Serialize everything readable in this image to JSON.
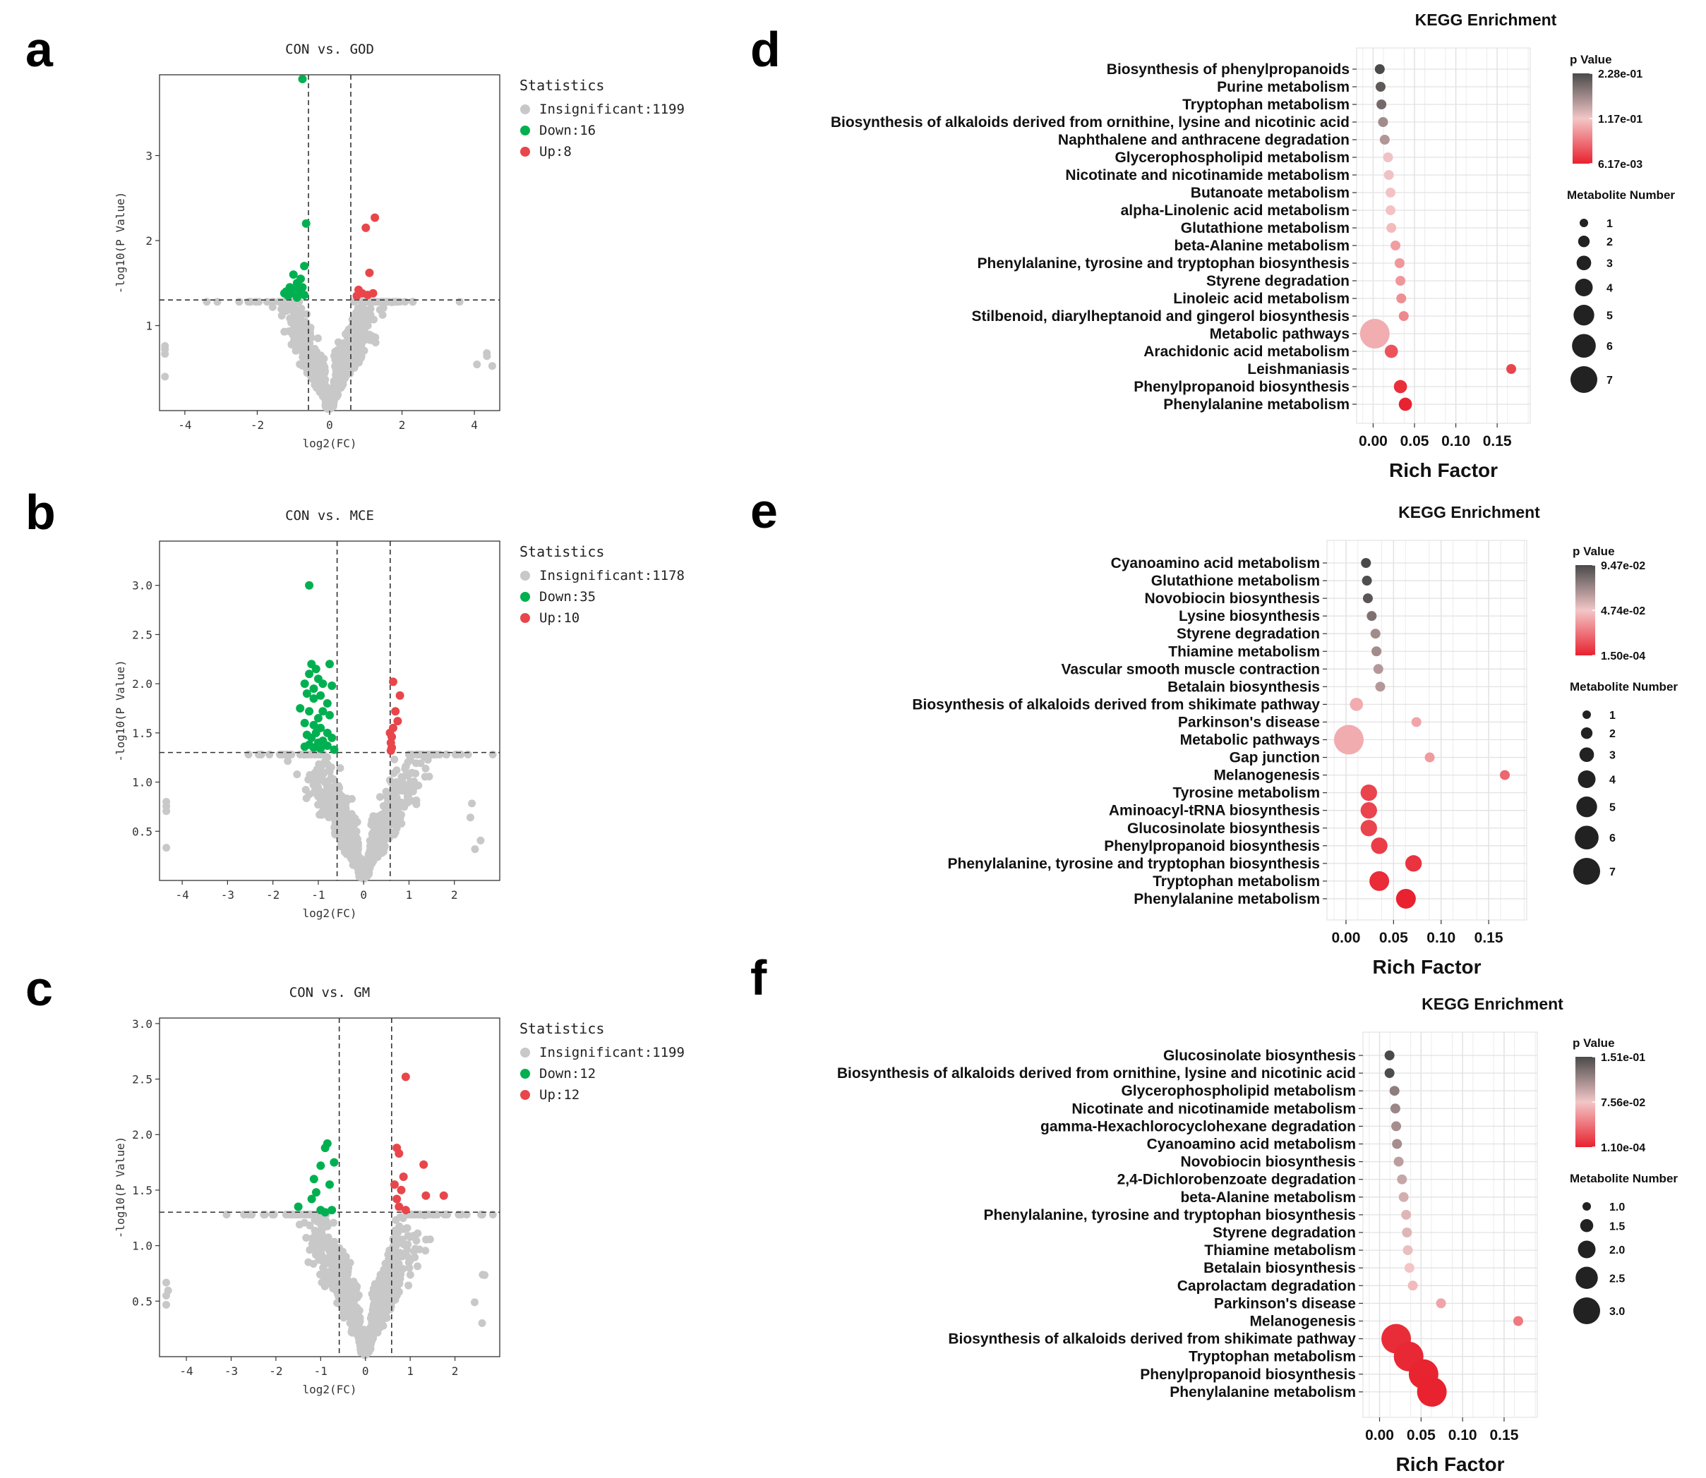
{
  "panel_letters": [
    "a",
    "b",
    "c",
    "d",
    "e",
    "f"
  ],
  "colors": {
    "insignificant": "#c8c8c8",
    "down": "#00b050",
    "up": "#e8464b",
    "grid": "#ececec",
    "pvalue_low": "#e8222e",
    "pvalue_mid": "#f3c6c7",
    "pvalue_high": "#4a4a4a"
  },
  "chart_data": [
    {
      "id": "a",
      "type": "scatter",
      "title": "CON vs. GOD",
      "xlabel": "log2(FC)",
      "ylabel": "-log10(P Value)",
      "xlim": [
        -4.7,
        4.7
      ],
      "ylim": [
        0,
        3.95
      ],
      "xticks": [
        -4,
        -2,
        0,
        2,
        4
      ],
      "yticks": [
        1,
        2,
        3
      ],
      "thresholds": {
        "x": [
          -0.585,
          0.585
        ],
        "y": 1.301
      },
      "legend_title": "Statistics",
      "legend": [
        "Insignificant:1199",
        "Down:16",
        "Up:8"
      ],
      "down_points": [
        [
          -0.75,
          3.9
        ],
        [
          -0.65,
          2.2
        ],
        [
          -0.7,
          1.7
        ],
        [
          -1.0,
          1.6
        ],
        [
          -0.8,
          1.55
        ],
        [
          -0.9,
          1.5
        ],
        [
          -1.1,
          1.45
        ],
        [
          -0.75,
          1.45
        ],
        [
          -0.95,
          1.42
        ],
        [
          -1.2,
          1.4
        ],
        [
          -0.85,
          1.4
        ],
        [
          -1.05,
          1.38
        ],
        [
          -1.25,
          1.38
        ],
        [
          -0.7,
          1.36
        ],
        [
          -1.15,
          1.35
        ],
        [
          -0.9,
          1.33
        ]
      ],
      "up_points": [
        [
          1.25,
          2.27
        ],
        [
          1.0,
          2.15
        ],
        [
          1.1,
          1.62
        ],
        [
          0.8,
          1.42
        ],
        [
          0.9,
          1.38
        ],
        [
          1.2,
          1.38
        ],
        [
          1.05,
          1.36
        ],
        [
          0.75,
          1.35
        ]
      ]
    },
    {
      "id": "b",
      "type": "scatter",
      "title": "CON vs. MCE",
      "xlabel": "log2(FC)",
      "ylabel": "-log10(P Value)",
      "xlim": [
        -4.5,
        3.0
      ],
      "ylim": [
        0,
        3.45
      ],
      "xticks": [
        -4,
        -3,
        -2,
        -1,
        0,
        1,
        2
      ],
      "yticks": [
        0.5,
        1.0,
        1.5,
        2.0,
        2.5,
        3.0
      ],
      "thresholds": {
        "x": [
          -0.585,
          0.585
        ],
        "y": 1.301
      },
      "legend_title": "Statistics",
      "legend": [
        "Insignificant:1178",
        "Down:35",
        "Up:10"
      ],
      "down_points": [
        [
          -1.2,
          3.0
        ],
        [
          -1.15,
          2.2
        ],
        [
          -1.05,
          2.15
        ],
        [
          -0.75,
          2.2
        ],
        [
          -1.2,
          2.1
        ],
        [
          -1.0,
          2.05
        ],
        [
          -1.3,
          2.0
        ],
        [
          -0.9,
          2.0
        ],
        [
          -0.7,
          1.98
        ],
        [
          -1.1,
          1.95
        ],
        [
          -1.25,
          1.9
        ],
        [
          -0.95,
          1.88
        ],
        [
          -1.1,
          1.85
        ],
        [
          -0.8,
          1.8
        ],
        [
          -1.4,
          1.75
        ],
        [
          -1.2,
          1.72
        ],
        [
          -0.9,
          1.72
        ],
        [
          -1.0,
          1.65
        ],
        [
          -0.75,
          1.68
        ],
        [
          -1.3,
          1.6
        ],
        [
          -1.1,
          1.58
        ],
        [
          -0.95,
          1.55
        ],
        [
          -1.05,
          1.5
        ],
        [
          -0.8,
          1.5
        ],
        [
          -1.25,
          1.48
        ],
        [
          -1.15,
          1.45
        ],
        [
          -0.7,
          1.45
        ],
        [
          -0.9,
          1.42
        ],
        [
          -1.0,
          1.4
        ],
        [
          -1.2,
          1.38
        ],
        [
          -0.8,
          1.37
        ],
        [
          -1.1,
          1.35
        ],
        [
          -0.95,
          1.34
        ],
        [
          -0.65,
          1.33
        ],
        [
          -1.3,
          1.36
        ]
      ],
      "up_points": [
        [
          0.65,
          2.02
        ],
        [
          0.8,
          1.88
        ],
        [
          0.7,
          1.72
        ],
        [
          0.75,
          1.62
        ],
        [
          0.65,
          1.55
        ],
        [
          0.58,
          1.5
        ],
        [
          0.62,
          1.46
        ],
        [
          0.6,
          1.4
        ],
        [
          0.62,
          1.35
        ],
        [
          0.6,
          1.32
        ]
      ]
    },
    {
      "id": "c",
      "type": "scatter",
      "title": "CON vs. GM",
      "xlabel": "log2(FC)",
      "ylabel": "-log10(P Value)",
      "xlim": [
        -4.6,
        3.0
      ],
      "ylim": [
        0,
        3.05
      ],
      "xticks": [
        -4,
        -3,
        -2,
        -1,
        0,
        1,
        2
      ],
      "yticks": [
        0.5,
        1.0,
        1.5,
        2.0,
        2.5,
        3.0
      ],
      "thresholds": {
        "x": [
          -0.585,
          0.585
        ],
        "y": 1.301
      },
      "legend_title": "Statistics",
      "legend": [
        "Insignificant:1199",
        "Down:12",
        "Up:12"
      ],
      "down_points": [
        [
          -0.85,
          1.92
        ],
        [
          -0.9,
          1.88
        ],
        [
          -0.7,
          1.75
        ],
        [
          -1.0,
          1.72
        ],
        [
          -1.15,
          1.6
        ],
        [
          -0.8,
          1.55
        ],
        [
          -1.1,
          1.48
        ],
        [
          -1.5,
          1.35
        ],
        [
          -1.0,
          1.32
        ],
        [
          -0.75,
          1.32
        ],
        [
          -0.9,
          1.3
        ],
        [
          -1.2,
          1.42
        ]
      ],
      "up_points": [
        [
          0.9,
          2.52
        ],
        [
          0.7,
          1.88
        ],
        [
          0.75,
          1.83
        ],
        [
          1.3,
          1.73
        ],
        [
          0.85,
          1.62
        ],
        [
          0.65,
          1.55
        ],
        [
          0.8,
          1.5
        ],
        [
          1.35,
          1.45
        ],
        [
          1.75,
          1.45
        ],
        [
          0.7,
          1.42
        ],
        [
          0.9,
          1.32
        ],
        [
          0.75,
          1.35
        ]
      ]
    },
    {
      "id": "d",
      "type": "scatter",
      "title": "KEGG Enrichment",
      "xlabel": "Rich Factor",
      "xlim": [
        -0.02,
        0.19
      ],
      "xticks": [
        "0.00",
        "0.05",
        "0.10",
        "0.15"
      ],
      "xtick_values": [
        0,
        0.05,
        0.1,
        0.15
      ],
      "colorbar_title": "p Value",
      "colorbar_labels": [
        "2.28e-01",
        "1.17e-01",
        "6.17e-03"
      ],
      "size_title": "Metabolite Number",
      "size_legend": [
        "1",
        "2",
        "3",
        "4",
        "5",
        "6",
        "7"
      ],
      "pathways": [
        {
          "name": "Biosynthesis of phenylpropanoids",
          "rich": 0.008,
          "p": 0.228,
          "n": 1
        },
        {
          "name": "Purine metabolism",
          "rich": 0.009,
          "p": 0.215,
          "n": 1
        },
        {
          "name": "Tryptophan metabolism",
          "rich": 0.01,
          "p": 0.2,
          "n": 1
        },
        {
          "name": "Biosynthesis of alkaloids derived from ornithine, lysine and nicotinic acid",
          "rich": 0.012,
          "p": 0.17,
          "n": 1
        },
        {
          "name": "Naphthalene and anthracene degradation",
          "rich": 0.014,
          "p": 0.16,
          "n": 1
        },
        {
          "name": "Glycerophospholipid metabolism",
          "rich": 0.018,
          "p": 0.12,
          "n": 1
        },
        {
          "name": "Nicotinate and nicotinamide metabolism",
          "rich": 0.019,
          "p": 0.12,
          "n": 1
        },
        {
          "name": "Butanoate metabolism",
          "rich": 0.021,
          "p": 0.115,
          "n": 1
        },
        {
          "name": "alpha-Linolenic acid metabolism",
          "rich": 0.021,
          "p": 0.115,
          "n": 1
        },
        {
          "name": "Glutathione metabolism",
          "rich": 0.022,
          "p": 0.11,
          "n": 1
        },
        {
          "name": "beta-Alanine metabolism",
          "rich": 0.027,
          "p": 0.09,
          "n": 1
        },
        {
          "name": "Phenylalanine, tyrosine and tryptophan biosynthesis",
          "rich": 0.032,
          "p": 0.085,
          "n": 1
        },
        {
          "name": "Styrene degradation",
          "rich": 0.033,
          "p": 0.085,
          "n": 1
        },
        {
          "name": "Linoleic acid metabolism",
          "rich": 0.034,
          "p": 0.08,
          "n": 1
        },
        {
          "name": "Stilbenoid, diarylheptanoid and gingerol biosynthesis",
          "rich": 0.037,
          "p": 0.075,
          "n": 1
        },
        {
          "name": "Metabolic pathways",
          "rich": 0.002,
          "p": 0.1,
          "n": 7
        },
        {
          "name": "Arachidonic acid metabolism",
          "rich": 0.022,
          "p": 0.04,
          "n": 2
        },
        {
          "name": "Leishmaniasis",
          "rich": 0.167,
          "p": 0.03,
          "n": 1
        },
        {
          "name": "Phenylpropanoid biosynthesis",
          "rich": 0.033,
          "p": 0.015,
          "n": 2
        },
        {
          "name": "Phenylalanine metabolism",
          "rich": 0.039,
          "p": 0.00617,
          "n": 2
        }
      ],
      "p_range": [
        0.00617,
        0.228
      ]
    },
    {
      "id": "e",
      "type": "scatter",
      "title": "KEGG Enrichment",
      "xlabel": "Rich Factor",
      "xlim": [
        -0.02,
        0.19
      ],
      "xticks": [
        "0.00",
        "0.05",
        "0.10",
        "0.15"
      ],
      "xtick_values": [
        0,
        0.05,
        0.1,
        0.15
      ],
      "colorbar_title": "p Value",
      "colorbar_labels": [
        "9.47e-02",
        "4.74e-02",
        "1.50e-04"
      ],
      "size_title": "Metabolite Number",
      "size_legend": [
        "1",
        "2",
        "3",
        "4",
        "5",
        "6",
        "7"
      ],
      "pathways": [
        {
          "name": "Cyanoamino acid metabolism",
          "rich": 0.021,
          "p": 0.0947,
          "n": 1
        },
        {
          "name": "Glutathione metabolism",
          "rich": 0.022,
          "p": 0.093,
          "n": 1
        },
        {
          "name": "Novobiocin biosynthesis",
          "rich": 0.023,
          "p": 0.09,
          "n": 1
        },
        {
          "name": "Lysine biosynthesis",
          "rich": 0.027,
          "p": 0.08,
          "n": 1
        },
        {
          "name": "Styrene degradation",
          "rich": 0.031,
          "p": 0.07,
          "n": 1
        },
        {
          "name": "Thiamine metabolism",
          "rich": 0.032,
          "p": 0.07,
          "n": 1
        },
        {
          "name": "Vascular smooth muscle contraction",
          "rich": 0.034,
          "p": 0.065,
          "n": 1
        },
        {
          "name": "Betalain biosynthesis",
          "rich": 0.036,
          "p": 0.065,
          "n": 1
        },
        {
          "name": "Biosynthesis of alkaloids derived from shikimate pathway",
          "rich": 0.011,
          "p": 0.04,
          "n": 2
        },
        {
          "name": "Parkinson's disease",
          "rich": 0.074,
          "p": 0.038,
          "n": 1
        },
        {
          "name": "Metabolic pathways",
          "rich": 0.003,
          "p": 0.04,
          "n": 7
        },
        {
          "name": "Gap junction",
          "rich": 0.088,
          "p": 0.035,
          "n": 1
        },
        {
          "name": "Melanogenesis",
          "rich": 0.167,
          "p": 0.02,
          "n": 1
        },
        {
          "name": "Tyrosine metabolism",
          "rich": 0.024,
          "p": 0.01,
          "n": 3
        },
        {
          "name": "Aminoacyl-tRNA biosynthesis",
          "rich": 0.024,
          "p": 0.01,
          "n": 3
        },
        {
          "name": "Glucosinolate biosynthesis",
          "rich": 0.024,
          "p": 0.01,
          "n": 3
        },
        {
          "name": "Phenylpropanoid biosynthesis",
          "rich": 0.035,
          "p": 0.008,
          "n": 3
        },
        {
          "name": "Phenylalanine, tyrosine and tryptophan biosynthesis",
          "rich": 0.071,
          "p": 0.005,
          "n": 3
        },
        {
          "name": "Tryptophan metabolism",
          "rich": 0.035,
          "p": 0.003,
          "n": 4
        },
        {
          "name": "Phenylalanine metabolism",
          "rich": 0.063,
          "p": 0.00015,
          "n": 4
        }
      ],
      "p_range": [
        0.00015,
        0.0947
      ]
    },
    {
      "id": "f",
      "type": "scatter",
      "title": "KEGG Enrichment",
      "xlabel": "Rich Factor",
      "xlim": [
        -0.02,
        0.19
      ],
      "xticks": [
        "0.00",
        "0.05",
        "0.10",
        "0.15"
      ],
      "xtick_values": [
        0,
        0.05,
        0.1,
        0.15
      ],
      "colorbar_title": "p Value",
      "colorbar_labels": [
        "1.51e-01",
        "7.56e-02",
        "1.10e-04"
      ],
      "size_title": "Metabolite Number",
      "size_legend": [
        "1.0",
        "1.5",
        "2.0",
        "2.5",
        "3.0"
      ],
      "pathways": [
        {
          "name": "Glucosinolate biosynthesis",
          "rich": 0.012,
          "p": 0.151,
          "n": 1
        },
        {
          "name": "Biosynthesis of alkaloids derived from ornithine, lysine and nicotinic acid",
          "rich": 0.012,
          "p": 0.15,
          "n": 1
        },
        {
          "name": "Glycerophospholipid metabolism",
          "rich": 0.018,
          "p": 0.12,
          "n": 1
        },
        {
          "name": "Nicotinate and nicotinamide metabolism",
          "rich": 0.019,
          "p": 0.115,
          "n": 1
        },
        {
          "name": "gamma-Hexachlorocyclohexane degradation",
          "rich": 0.02,
          "p": 0.11,
          "n": 1
        },
        {
          "name": "Cyanoamino acid metabolism",
          "rich": 0.021,
          "p": 0.11,
          "n": 1
        },
        {
          "name": "Novobiocin biosynthesis",
          "rich": 0.023,
          "p": 0.1,
          "n": 1
        },
        {
          "name": "2,4-Dichlorobenzoate degradation",
          "rich": 0.027,
          "p": 0.095,
          "n": 1
        },
        {
          "name": "beta-Alanine metabolism",
          "rich": 0.029,
          "p": 0.09,
          "n": 1
        },
        {
          "name": "Phenylalanine, tyrosine and tryptophan biosynthesis",
          "rich": 0.032,
          "p": 0.085,
          "n": 1
        },
        {
          "name": "Styrene degradation",
          "rich": 0.033,
          "p": 0.085,
          "n": 1
        },
        {
          "name": "Thiamine metabolism",
          "rich": 0.034,
          "p": 0.08,
          "n": 1
        },
        {
          "name": "Betalain biosynthesis",
          "rich": 0.036,
          "p": 0.075,
          "n": 1
        },
        {
          "name": "Caprolactam degradation",
          "rich": 0.04,
          "p": 0.07,
          "n": 1
        },
        {
          "name": "Parkinson's disease",
          "rich": 0.074,
          "p": 0.06,
          "n": 1
        },
        {
          "name": "Melanogenesis",
          "rich": 0.167,
          "p": 0.04,
          "n": 1
        },
        {
          "name": "Biosynthesis of alkaloids derived from shikimate pathway",
          "rich": 0.02,
          "p": 0.005,
          "n": 3
        },
        {
          "name": "Tryptophan metabolism",
          "rich": 0.035,
          "p": 0.003,
          "n": 3
        },
        {
          "name": "Phenylpropanoid biosynthesis",
          "rich": 0.053,
          "p": 0.001,
          "n": 3
        },
        {
          "name": "Phenylalanine metabolism",
          "rich": 0.063,
          "p": 0.00011,
          "n": 3
        }
      ],
      "p_range": [
        0.00011,
        0.151
      ]
    }
  ]
}
